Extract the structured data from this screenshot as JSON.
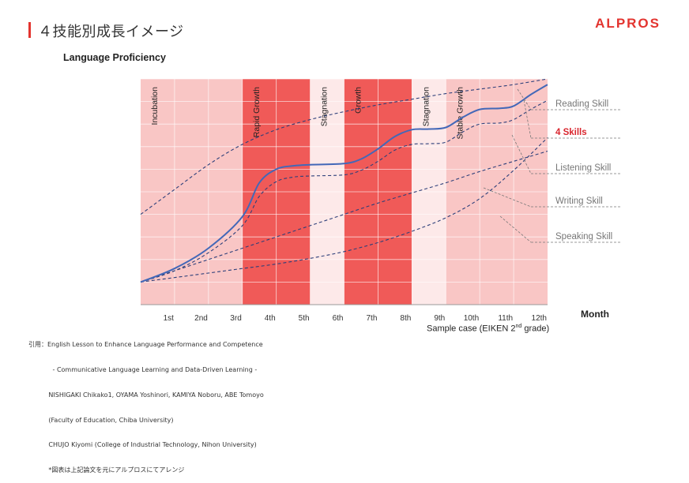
{
  "page": {
    "title": "４技能別成長イメージ",
    "logo": "ALPROS"
  },
  "citation": {
    "lines": [
      "引用：English Lesson to Enhance Language Performance and Competence",
      "            - Communicative Language Learning and Data-Driven Learning -",
      "          NISHIGAKI Chikako1, OYAMA Yoshinori, KAMIYA Noboru, ABE Tomoyo",
      "          (Faculty of Education, Chiba University)",
      "          CHUJO Kiyomi (College of Industrial Technology, Nihon University)",
      "          *図表は上記論文を元にアルプロスにてアレンジ"
    ]
  },
  "chart_data": {
    "type": "line",
    "ylabel": "Language Proficiency",
    "xlabel": "Month",
    "x_sublabel": "Sample case (EIKEN 2",
    "x_sublabel_sup": "nd",
    "x_sublabel_end": " grade)",
    "xlim": [
      0,
      12
    ],
    "ylim": [
      0,
      10
    ],
    "x_ticks": [
      "1st",
      "2nd",
      "3rd",
      "4th",
      "5th",
      "6th",
      "7th",
      "8th",
      "9th",
      "10th",
      "11th",
      "12th"
    ],
    "grid": true,
    "phases": [
      {
        "label": "Incubation",
        "start": 0,
        "end": 3,
        "color": "#f9c6c5"
      },
      {
        "label": "Rapid Growth",
        "start": 3,
        "end": 5,
        "color": "#f05a58"
      },
      {
        "label": "Stagnation",
        "start": 5,
        "end": 6,
        "color": "#fde9e9"
      },
      {
        "label": "Growth",
        "start": 6,
        "end": 8,
        "color": "#f05a58"
      },
      {
        "label": "Stagnation",
        "start": 8,
        "end": 9,
        "color": "#fde9e9"
      },
      {
        "label": "Stable Growth",
        "start": 9,
        "end": 12,
        "color": "#f9c6c5"
      }
    ],
    "series": [
      {
        "name": "Reading Skill",
        "style": "dashed",
        "color": "#2d3f7a",
        "points": [
          [
            0,
            4.0
          ],
          [
            1,
            5.1
          ],
          [
            2,
            6.2
          ],
          [
            3,
            7.1
          ],
          [
            4,
            7.75
          ],
          [
            5,
            8.2
          ],
          [
            6,
            8.55
          ],
          [
            7,
            8.85
          ],
          [
            8,
            9.1
          ],
          [
            9,
            9.35
          ],
          [
            10,
            9.55
          ],
          [
            11,
            9.75
          ],
          [
            12,
            10.0
          ]
        ]
      },
      {
        "name": "4 Skills",
        "style": "solid",
        "highlight": true,
        "color": "#4368b8",
        "points": [
          [
            0,
            1.0
          ],
          [
            1,
            1.6
          ],
          [
            2,
            2.5
          ],
          [
            3,
            3.9
          ],
          [
            3.5,
            5.4
          ],
          [
            4,
            6.0
          ],
          [
            4.5,
            6.15
          ],
          [
            5,
            6.2
          ],
          [
            6,
            6.25
          ],
          [
            6.5,
            6.45
          ],
          [
            7,
            6.9
          ],
          [
            7.5,
            7.45
          ],
          [
            8,
            7.75
          ],
          [
            8.5,
            7.78
          ],
          [
            9,
            7.85
          ],
          [
            9.5,
            8.3
          ],
          [
            10,
            8.65
          ],
          [
            10.6,
            8.7
          ],
          [
            11,
            8.8
          ],
          [
            11.5,
            9.3
          ],
          [
            12,
            9.75
          ]
        ]
      },
      {
        "name": "Listening Skill",
        "style": "dashed",
        "color": "#2d3f7a",
        "points": [
          [
            0,
            1.0
          ],
          [
            1,
            1.5
          ],
          [
            2,
            2.3
          ],
          [
            3,
            3.5
          ],
          [
            3.5,
            4.8
          ],
          [
            4,
            5.45
          ],
          [
            4.5,
            5.65
          ],
          [
            5,
            5.7
          ],
          [
            6,
            5.75
          ],
          [
            6.5,
            5.95
          ],
          [
            7,
            6.35
          ],
          [
            7.5,
            6.85
          ],
          [
            8,
            7.1
          ],
          [
            8.5,
            7.13
          ],
          [
            9,
            7.2
          ],
          [
            9.5,
            7.65
          ],
          [
            10,
            8.0
          ],
          [
            10.6,
            8.05
          ],
          [
            11,
            8.2
          ],
          [
            11.5,
            8.65
          ],
          [
            12,
            9.05
          ]
        ]
      },
      {
        "name": "Writing Skill",
        "style": "dashed",
        "color": "#2d3f7a",
        "points": [
          [
            0,
            1.0
          ],
          [
            1,
            1.5
          ],
          [
            2,
            2.0
          ],
          [
            3,
            2.5
          ],
          [
            4,
            3.0
          ],
          [
            5,
            3.5
          ],
          [
            6,
            4.0
          ],
          [
            7,
            4.5
          ],
          [
            8,
            4.95
          ],
          [
            9,
            5.4
          ],
          [
            10,
            5.9
          ],
          [
            11,
            6.35
          ],
          [
            12,
            6.8
          ]
        ]
      },
      {
        "name": "Speaking Skill",
        "style": "dashed",
        "color": "#2d3f7a",
        "points": [
          [
            0,
            1.0
          ],
          [
            1,
            1.2
          ],
          [
            2,
            1.4
          ],
          [
            3,
            1.6
          ],
          [
            4,
            1.8
          ],
          [
            5,
            2.05
          ],
          [
            6,
            2.35
          ],
          [
            7,
            2.75
          ],
          [
            8,
            3.25
          ],
          [
            9,
            3.85
          ],
          [
            10,
            4.7
          ],
          [
            11,
            5.95
          ],
          [
            12,
            7.4
          ]
        ]
      }
    ],
    "legend_placement": "right"
  }
}
